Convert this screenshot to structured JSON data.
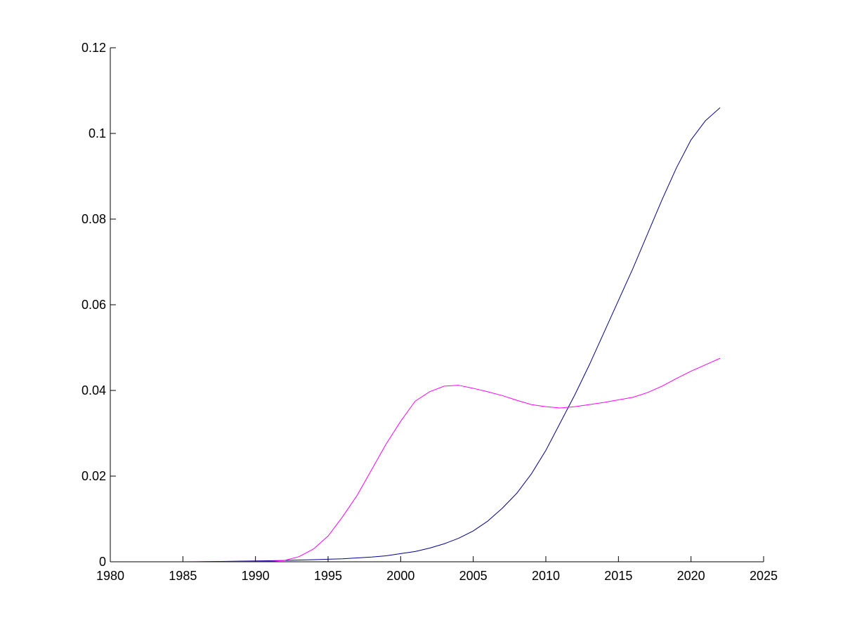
{
  "chart_data": {
    "type": "line",
    "title": "",
    "xlabel": "",
    "ylabel": "",
    "xlim": [
      1980,
      2025
    ],
    "ylim": [
      0,
      0.12
    ],
    "grid": false,
    "xticks": [
      1980,
      1985,
      1990,
      1995,
      2000,
      2005,
      2010,
      2015,
      2020,
      2025
    ],
    "xtick_labels": [
      "1980",
      "1985",
      "1990",
      "1995",
      "2000",
      "2005",
      "2010",
      "2015",
      "2020",
      "2025"
    ],
    "yticks": [
      0,
      0.02,
      0.04,
      0.06,
      0.08,
      0.1,
      0.12
    ],
    "ytick_labels": [
      "0",
      "0.02",
      "0.04",
      "0.06",
      "0.08",
      "0.1",
      "0.12"
    ],
    "series": [
      {
        "color": "#00008f",
        "x": [
          1980,
          1982,
          1984,
          1986,
          1988,
          1990,
          1992,
          1994,
          1995,
          1996,
          1997,
          1998,
          1999,
          2000,
          2001,
          2002,
          2003,
          2004,
          2005,
          2006,
          2007,
          2008,
          2009,
          2010,
          2011,
          2012,
          2013,
          2014,
          2015,
          2016,
          2017,
          2018,
          2019,
          2020,
          2021,
          2022
        ],
        "y": [
          0,
          0,
          0,
          0,
          0.0001,
          0.0002,
          0.0003,
          0.0005,
          0.0006,
          0.0007,
          0.0009,
          0.0011,
          0.0014,
          0.0019,
          0.0024,
          0.0032,
          0.0042,
          0.0055,
          0.0072,
          0.0095,
          0.0125,
          0.016,
          0.0205,
          0.026,
          0.0325,
          0.039,
          0.046,
          0.0535,
          0.061,
          0.0685,
          0.0765,
          0.0845,
          0.092,
          0.0985,
          0.103,
          0.106
        ]
      },
      {
        "color": "#ff00ff",
        "x": [
          1980,
          1985,
          1990,
          1991,
          1992,
          1993,
          1994,
          1995,
          1996,
          1997,
          1998,
          1999,
          2000,
          2001,
          2002,
          2003,
          2004,
          2005,
          2006,
          2007,
          2008,
          2009,
          2010,
          2011,
          2012,
          2013,
          2014,
          2015,
          2016,
          2017,
          2018,
          2019,
          2020,
          2021,
          2022
        ],
        "y": [
          0,
          0,
          0.0001,
          0.0001,
          0.0003,
          0.0012,
          0.003,
          0.006,
          0.0105,
          0.0155,
          0.0215,
          0.0275,
          0.0328,
          0.0375,
          0.0397,
          0.041,
          0.0412,
          0.0405,
          0.0397,
          0.0388,
          0.0377,
          0.0367,
          0.0362,
          0.0359,
          0.0362,
          0.0367,
          0.0372,
          0.0378,
          0.0384,
          0.0395,
          0.041,
          0.0428,
          0.0445,
          0.046,
          0.0475
        ]
      }
    ]
  }
}
